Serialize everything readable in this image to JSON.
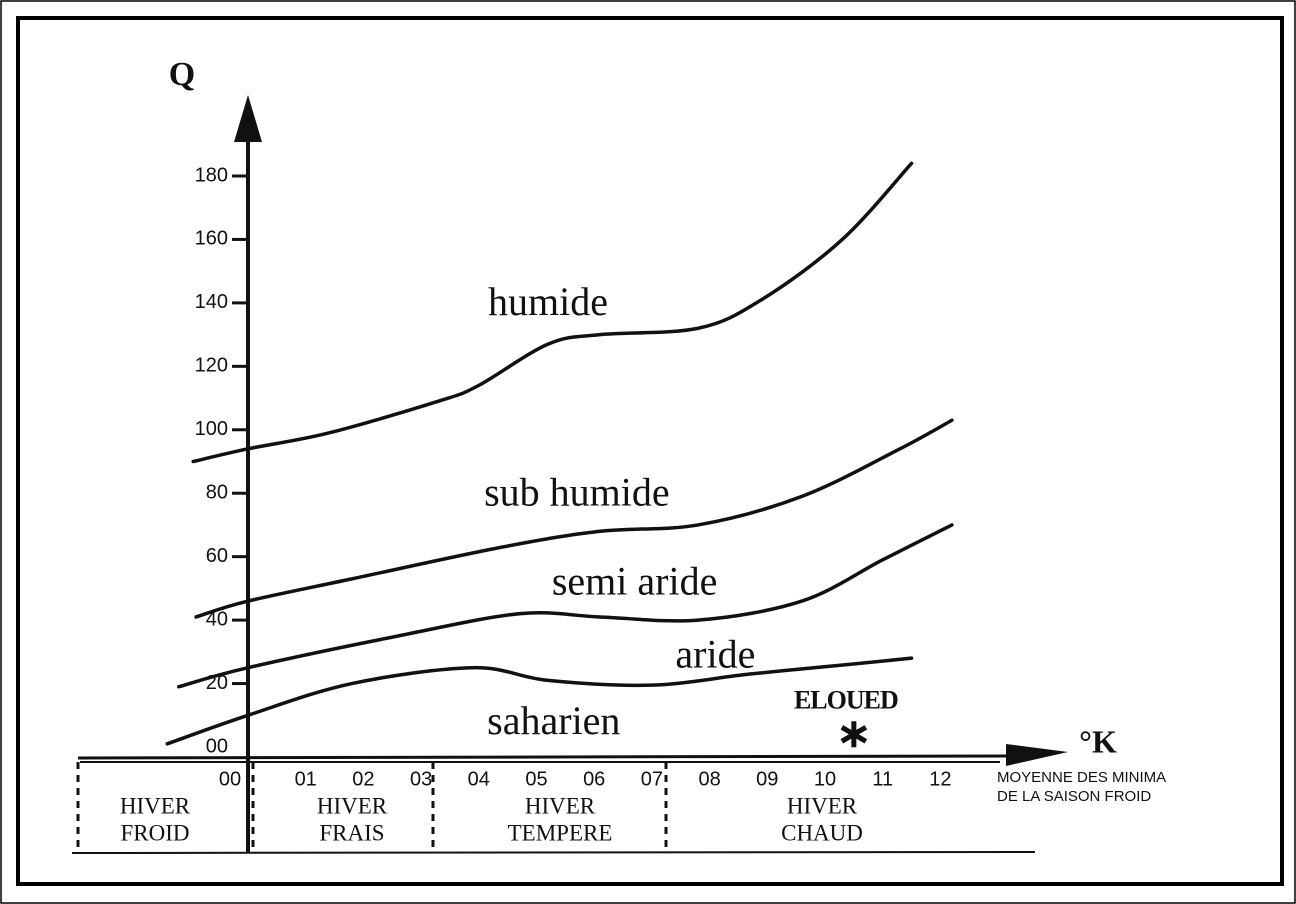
{
  "chart_data": {
    "type": "line",
    "ylabel": "Q",
    "xlabel": "°K",
    "xlabel_note": [
      "MOYENNE DES MINIMA",
      "DE LA SAISON FROID"
    ],
    "xlim": [
      -3,
      14
    ],
    "ylim": [
      0,
      180
    ],
    "xticks": [
      {
        "value": 0,
        "label": "00"
      },
      {
        "value": 1,
        "label": "01"
      },
      {
        "value": 2,
        "label": "02"
      },
      {
        "value": 3,
        "label": "03"
      },
      {
        "value": 4,
        "label": "04"
      },
      {
        "value": 5,
        "label": "05"
      },
      {
        "value": 6,
        "label": "06"
      },
      {
        "value": 7,
        "label": "07"
      },
      {
        "value": 8,
        "label": "08"
      },
      {
        "value": 9,
        "label": "09"
      },
      {
        "value": 10,
        "label": "10"
      },
      {
        "value": 11,
        "label": "11"
      },
      {
        "value": 12,
        "label": "12"
      }
    ],
    "yticks": [
      {
        "value": 0,
        "label": "00"
      },
      20,
      40,
      60,
      80,
      100,
      120,
      140,
      160,
      180
    ],
    "boundaries": [
      {
        "color": "#111111",
        "x": [
          -0.95,
          0,
          1.4,
          3.3,
          4,
          5.2,
          6.1,
          7.8,
          8.9,
          10.3,
          11.5
        ],
        "values": [
          90,
          94,
          99,
          109,
          114,
          127,
          130,
          132,
          141,
          160,
          184
        ]
      },
      {
        "color": "#111111",
        "x": [
          -0.9,
          0,
          1.8,
          4.4,
          6.1,
          7.8,
          9.6,
          11.3,
          12.2
        ],
        "values": [
          41,
          46,
          53,
          63,
          68,
          70,
          79,
          94,
          103
        ]
      },
      {
        "color": "#111111",
        "x": [
          -1.2,
          0,
          2.6,
          4.7,
          6.1,
          7.8,
          9.6,
          11,
          12.2
        ],
        "values": [
          19,
          25,
          35,
          42,
          41,
          40,
          46,
          59,
          70
        ]
      },
      {
        "color": "#111111",
        "x": [
          -1.4,
          0,
          1.8,
          3.9,
          5.2,
          7,
          8.7,
          10.4,
          11.5
        ],
        "values": [
          1,
          10,
          20,
          25,
          21,
          19.5,
          23,
          26,
          28
        ]
      }
    ],
    "zones": [
      {
        "label": "humide",
        "x": 5.2,
        "y": 139
      },
      {
        "label": "sub humide",
        "x": 5.7,
        "y": 79
      },
      {
        "label": "semi aride",
        "x": 6.7,
        "y": 51
      },
      {
        "label": "aride",
        "x": 8.1,
        "y": 28
      },
      {
        "label": "saharien",
        "x": 5.3,
        "y": 7
      }
    ],
    "station": {
      "label": "ELOUED",
      "x": 10.5,
      "y": 4
    },
    "winters": [
      {
        "lines": [
          "HIVER",
          "FROID"
        ]
      },
      {
        "lines": [
          "HIVER",
          "FRAIS"
        ]
      },
      {
        "lines": [
          "HIVER",
          "TEMPERE"
        ]
      },
      {
        "lines": [
          "HIVER",
          "CHAUD"
        ]
      }
    ]
  }
}
